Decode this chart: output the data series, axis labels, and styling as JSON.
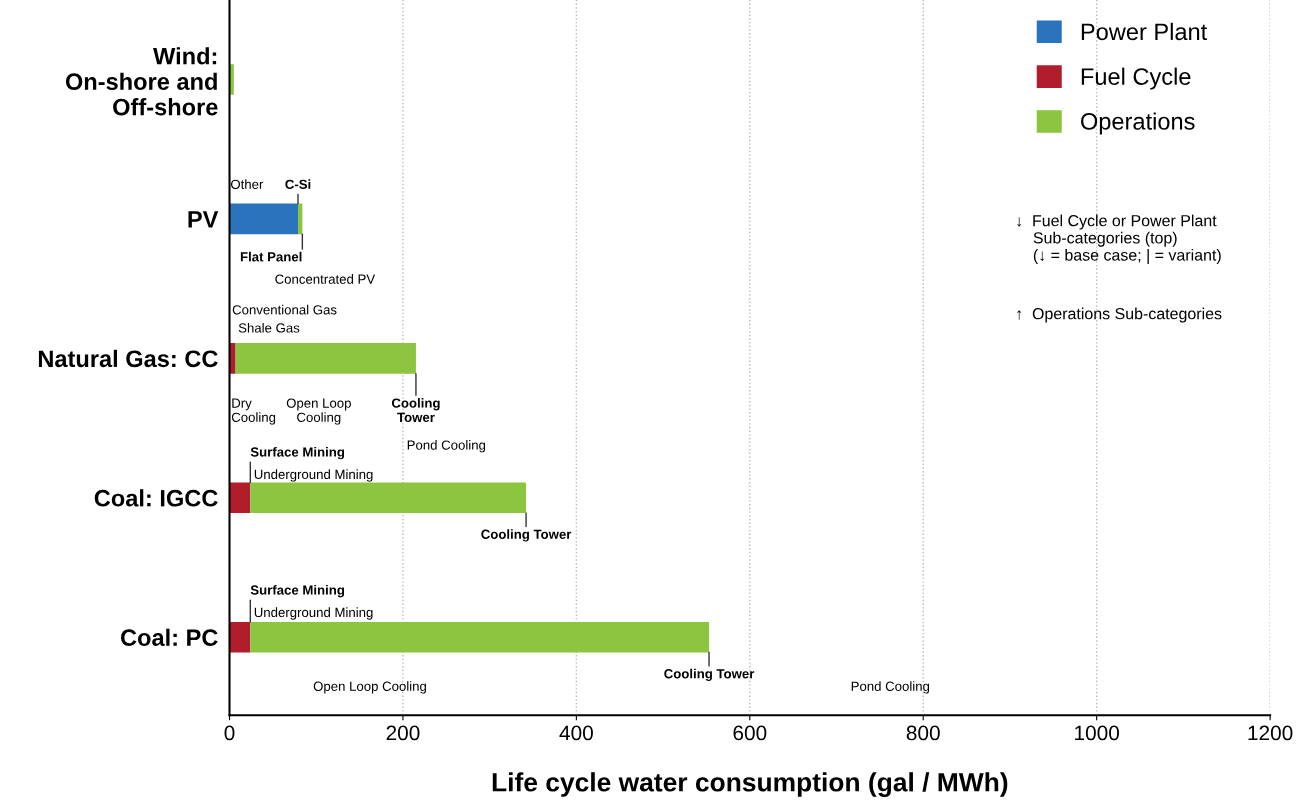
{
  "chart_data": {
    "type": "bar",
    "orientation": "horizontal",
    "stacked": true,
    "categories": [
      "Wind:\nOn-shore and\nOff-shore",
      "PV",
      "Natural Gas: CC",
      "Coal: IGCC",
      "Coal: PC"
    ],
    "series": [
      {
        "name": "Power Plant",
        "color": "#2a74be",
        "values": [
          0,
          79,
          0,
          0,
          0
        ]
      },
      {
        "name": "Fuel Cycle",
        "color": "#b01e2c",
        "values": [
          0,
          0,
          7,
          24,
          24
        ]
      },
      {
        "name": "Operations",
        "color": "#8cc540",
        "values": [
          5,
          5,
          208,
          318,
          529
        ]
      }
    ],
    "xlim": [
      0,
      1200
    ],
    "xticks": [
      0,
      200,
      400,
      600,
      800,
      1000,
      1200
    ],
    "xlabel": "Life cycle water consumption (gal / MWh)",
    "grid": "x",
    "legend": "top right",
    "annotations": [
      {
        "text": "C-Si",
        "x": 79,
        "y": "PV"
      },
      {
        "text": "Flat Panel",
        "x": 84,
        "y": "PV"
      },
      {
        "text": "Cooling\nTower",
        "x": 215,
        "y": "Natural Gas: CC"
      },
      {
        "text": "Surface Mining",
        "x": 24,
        "y": "Coal: IGCC"
      },
      {
        "text": "Cooling Tower",
        "x": 342,
        "y": "Coal: IGCC"
      },
      {
        "text": "Surface Mining",
        "x": 24,
        "y": "Coal: PC"
      },
      {
        "text": "Cooling Tower",
        "x": 553,
        "y": "Coal: PC"
      },
      "Other",
      "Conventional Gas",
      "Concentrated PV",
      "Shale Gas",
      "Dry\nCooling",
      "Open Loop\nCooling",
      "Pond Cooling",
      "Underground Mining",
      "Underground Mining",
      "Open Loop Cooling",
      "Pond Cooling",
      "↓  Fuel Cycle or Power Plant\n    Sub-categories (top)\n    (↓ = base case; | = variant)",
      "↑  Operations Sub-categories"
    ]
  }
}
